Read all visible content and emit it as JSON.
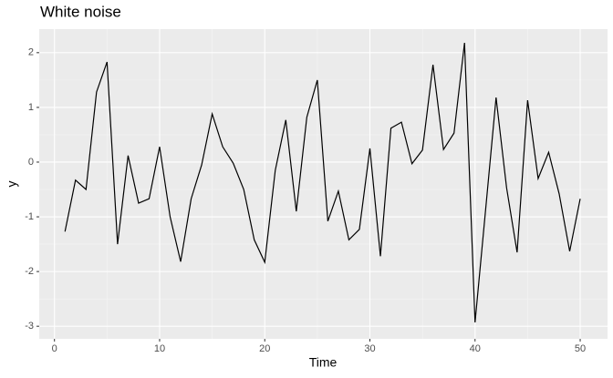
{
  "chart_data": {
    "type": "line",
    "title": "White noise",
    "xlabel": "Time",
    "ylabel": "y",
    "x": [
      1,
      2,
      3,
      4,
      5,
      6,
      7,
      8,
      9,
      10,
      11,
      12,
      13,
      14,
      15,
      16,
      17,
      18,
      19,
      20,
      21,
      22,
      23,
      24,
      25,
      26,
      27,
      28,
      29,
      30,
      31,
      32,
      33,
      34,
      35,
      36,
      37,
      38,
      39,
      40,
      41,
      42,
      43,
      44,
      45,
      46,
      47,
      48,
      49,
      50
    ],
    "values": [
      -1.27,
      -0.33,
      -0.5,
      1.28,
      1.83,
      -1.5,
      0.12,
      -0.75,
      -0.67,
      0.28,
      -1.0,
      -1.82,
      -0.67,
      -0.05,
      0.88,
      0.28,
      -0.02,
      -0.5,
      -1.42,
      -1.83,
      -0.15,
      0.77,
      -0.9,
      0.82,
      1.5,
      -1.08,
      -0.53,
      -1.42,
      -1.23,
      0.25,
      -1.72,
      0.62,
      0.73,
      -0.03,
      0.22,
      1.78,
      0.23,
      0.53,
      2.18,
      -2.93,
      -0.88,
      1.18,
      -0.47,
      -1.65,
      1.13,
      -0.3,
      0.18,
      -0.58,
      -1.63,
      -0.67
    ],
    "color": "#000000",
    "xlim": [
      -1.45,
      52.6
    ],
    "xticks": [
      0,
      10,
      20,
      30,
      40,
      50
    ],
    "ylim": [
      -3.23,
      2.43
    ],
    "yticks": [
      -3,
      -2,
      -1,
      0,
      1,
      2
    ],
    "grid": true,
    "minor_grid": true
  }
}
